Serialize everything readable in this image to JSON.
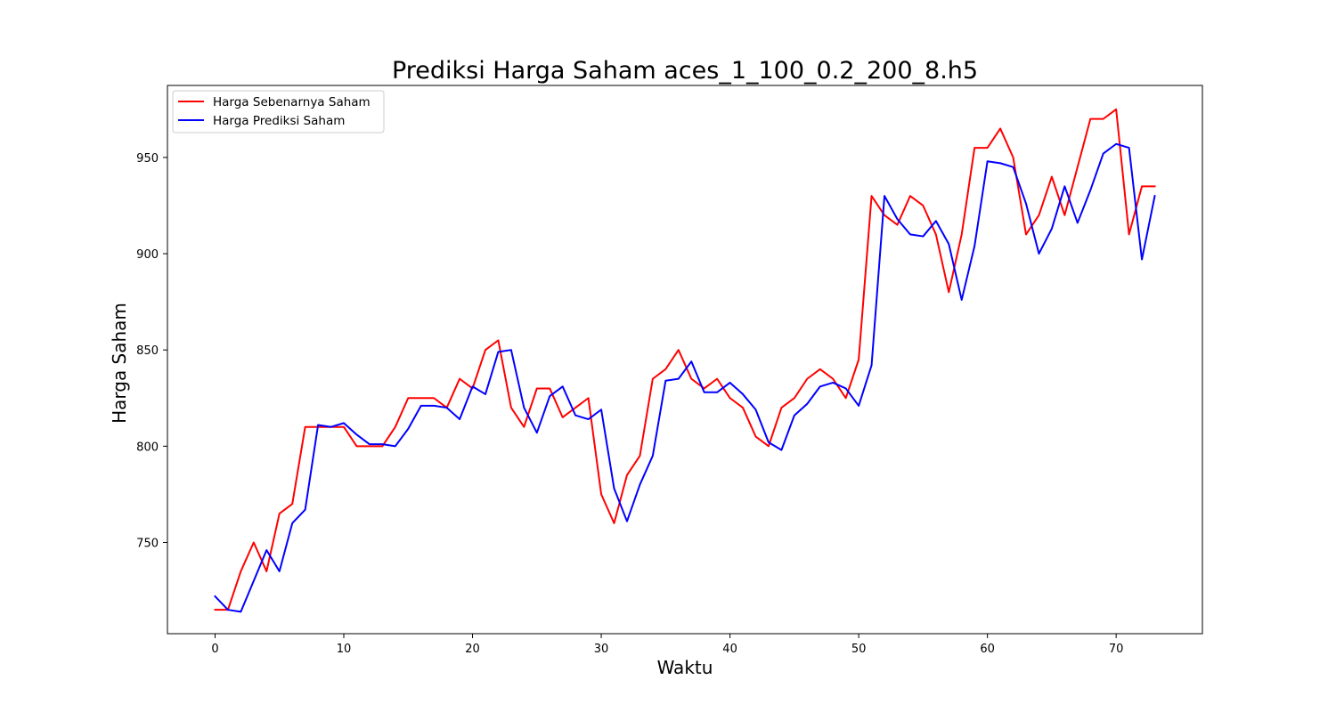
{
  "chart_data": {
    "type": "line",
    "title": "Prediksi Harga Saham aces_1_100_0.2_200_8.h5",
    "xlabel": "Waktu",
    "ylabel": "Harga Saham",
    "xlim": [
      -3.7,
      76.7
    ],
    "ylim": [
      702.6,
      987.4
    ],
    "xticks": [
      0,
      10,
      20,
      30,
      40,
      50,
      60,
      70
    ],
    "yticks": [
      750,
      800,
      850,
      900,
      950
    ],
    "grid": false,
    "legend_position": "top-left",
    "x": [
      0,
      1,
      2,
      3,
      4,
      5,
      6,
      7,
      8,
      9,
      10,
      11,
      12,
      13,
      14,
      15,
      16,
      17,
      18,
      19,
      20,
      21,
      22,
      23,
      24,
      25,
      26,
      27,
      28,
      29,
      30,
      31,
      32,
      33,
      34,
      35,
      36,
      37,
      38,
      39,
      40,
      41,
      42,
      43,
      44,
      45,
      46,
      47,
      48,
      49,
      50,
      51,
      52,
      53,
      54,
      55,
      56,
      57,
      58,
      59,
      60,
      61,
      62,
      63,
      64,
      65,
      66,
      67,
      68,
      69,
      70,
      71,
      72,
      73
    ],
    "series": [
      {
        "name": "Harga Sebenarnya Saham",
        "color": "#ff0000",
        "values": [
          715,
          715,
          735,
          750,
          735,
          765,
          770,
          810,
          810,
          810,
          810,
          800,
          800,
          800,
          810,
          825,
          825,
          825,
          820,
          835,
          830,
          850,
          855,
          820,
          810,
          830,
          830,
          815,
          820,
          825,
          775,
          760,
          785,
          795,
          835,
          840,
          850,
          835,
          830,
          835,
          825,
          820,
          805,
          800,
          820,
          825,
          835,
          840,
          835,
          825,
          845,
          930,
          920,
          915,
          930,
          925,
          910,
          880,
          910,
          955,
          955,
          965,
          950,
          910,
          920,
          940,
          920,
          945,
          970,
          970,
          975,
          910,
          935,
          935
        ]
      },
      {
        "name": "Harga Prediksi Saham",
        "color": "#0000ff",
        "values": [
          722,
          715,
          714,
          730,
          746,
          735,
          760,
          767,
          811,
          810,
          812,
          806,
          801,
          801,
          800,
          809,
          821,
          821,
          820,
          814,
          831,
          827,
          849,
          850,
          820,
          807,
          826,
          831,
          816,
          814,
          819,
          778,
          761,
          780,
          795,
          834,
          835,
          844,
          828,
          828,
          833,
          827,
          819,
          802,
          798,
          816,
          822,
          831,
          833,
          830,
          821,
          842,
          930,
          918,
          910,
          909,
          917,
          905,
          876,
          904,
          948,
          947,
          945,
          926,
          900,
          913,
          935,
          916,
          933,
          952,
          957,
          955,
          897,
          930
        ]
      }
    ]
  }
}
